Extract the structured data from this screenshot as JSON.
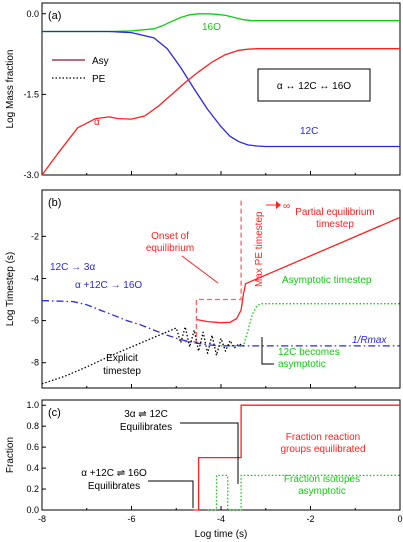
{
  "colors": {
    "red": "#ff2020",
    "blue": "#2828e0",
    "green": "#10cc10",
    "black": "#000000",
    "redDash": "#ff6060"
  },
  "chart_data": [
    {
      "type": "line",
      "panel_label": "(a)",
      "ylabel": "Log Mass fraction",
      "xlim": [
        -8,
        0
      ],
      "ylim": [
        -3.0,
        0.2
      ],
      "yticks": [
        "0.0",
        "-1.5",
        "-3.0"
      ],
      "ytick_values": [
        0.0,
        -1.5,
        -3.0
      ],
      "legend": [
        {
          "name": "Asy",
          "style": "solid",
          "color": "#8a1a2a"
        },
        {
          "name": "PE",
          "style": "dotted",
          "color": "#000000"
        }
      ],
      "series": [
        {
          "name": "16O",
          "color": "#10cc10",
          "x": [
            -8,
            -6.5,
            -6,
            -5.5,
            -5.3,
            -5.1,
            -4.9,
            -4.7,
            -4.5,
            -4.3,
            -4.1,
            -3.9,
            -3.7,
            -3.5,
            -3.3,
            -3,
            -2,
            -1,
            0
          ],
          "y": [
            -0.33,
            -0.33,
            -0.32,
            -0.28,
            -0.22,
            -0.14,
            -0.07,
            -0.02,
            0.0,
            0.0,
            -0.01,
            -0.03,
            -0.07,
            -0.11,
            -0.13,
            -0.13,
            -0.13,
            -0.13,
            -0.13
          ]
        },
        {
          "name": "12C",
          "color": "#2828e0",
          "x": [
            -8,
            -6.5,
            -6,
            -5.5,
            -5.2,
            -4.9,
            -4.6,
            -4.3,
            -4.0,
            -3.8,
            -3.6,
            -3.4,
            -3.2,
            -3.0,
            -2,
            -1,
            0
          ],
          "y": [
            -0.33,
            -0.33,
            -0.35,
            -0.45,
            -0.65,
            -1.0,
            -1.4,
            -1.78,
            -2.1,
            -2.28,
            -2.38,
            -2.44,
            -2.46,
            -2.47,
            -2.47,
            -2.47,
            -2.47
          ]
        },
        {
          "name": "alpha",
          "color": "#ff2020",
          "x": [
            -8,
            -7.6,
            -7.2,
            -6.8,
            -6.5,
            -6.3,
            -6.0,
            -5.7,
            -5.4,
            -5.1,
            -4.8,
            -4.5,
            -4.2,
            -3.9,
            -3.6,
            -3.4,
            -3.2,
            -3.0,
            -2.5,
            -2,
            -1,
            0
          ],
          "y": [
            -3.0,
            -2.55,
            -2.12,
            -1.95,
            -1.92,
            -1.95,
            -1.96,
            -1.9,
            -1.72,
            -1.5,
            -1.28,
            -1.08,
            -0.9,
            -0.76,
            -0.68,
            -0.66,
            -0.65,
            -0.65,
            -0.65,
            -0.65,
            -0.65,
            -0.65
          ]
        }
      ],
      "annotations": [
        {
          "text": "α",
          "color": "#ff2020"
        },
        {
          "text": "16O",
          "color": "#10cc10"
        },
        {
          "text": "12C",
          "color": "#2828e0"
        },
        {
          "text": "α ↔ 12C ↔ 16O",
          "color": "#000000"
        }
      ]
    },
    {
      "type": "line",
      "panel_label": "(b)",
      "ylabel": "Log Timestep (s)",
      "xlim": [
        -8,
        0
      ],
      "ylim": [
        -9.2,
        0.2
      ],
      "yticks": [
        "-2",
        "-4",
        "-6",
        "-8"
      ],
      "ytick_values": [
        -2,
        -4,
        -6,
        -8
      ],
      "series": [
        {
          "name": "Partial equilibrium timestep",
          "color": "#ff2020",
          "style": "solid",
          "x": [
            -4.55,
            -4.3,
            -4.0,
            -3.8,
            -3.65,
            -3.55,
            -3.5,
            -3.45,
            0
          ],
          "y": [
            -5.95,
            -6.05,
            -6.1,
            -6.08,
            -5.9,
            -5.5,
            -4.75,
            -4.25,
            -1.1
          ]
        },
        {
          "name": "Max PE timestep",
          "color": "#ff6060",
          "style": "dashed",
          "x": [
            -4.8,
            -4.55,
            -4.55,
            -3.55,
            -3.55,
            -3.55
          ],
          "y": [
            -7.0,
            -7.0,
            -5.0,
            -5.0,
            -4.9,
            -0.3
          ]
        },
        {
          "name": "Asymptotic timestep",
          "color": "#10cc10",
          "style": "dotted",
          "x": [
            -4.0,
            -3.5,
            -3.4,
            -3.3,
            -3.2,
            -3.1,
            -3.0,
            -2.5,
            -1,
            0
          ],
          "y": [
            -7.2,
            -7.2,
            -6.5,
            -5.7,
            -5.3,
            -5.2,
            -5.2,
            -5.2,
            -5.2,
            -5.2
          ]
        },
        {
          "name": "1/Rmax",
          "color": "#2828e0",
          "style": "dashdot",
          "x": [
            -8,
            -7.3,
            -7.0,
            -6.7,
            -6.4,
            -6.1,
            -5.8,
            -5.5,
            -5.2,
            -4.9,
            -4.6,
            -4.3,
            -4.0,
            -3.5,
            -3.0,
            -2,
            -1,
            0
          ],
          "y": [
            -5.05,
            -5.1,
            -5.25,
            -5.5,
            -5.75,
            -6.0,
            -6.2,
            -6.45,
            -6.7,
            -6.9,
            -7.05,
            -7.15,
            -7.2,
            -7.2,
            -7.2,
            -7.2,
            -7.2,
            -7.2
          ]
        },
        {
          "name": "Explicit timestep",
          "color": "#000000",
          "style": "dotted",
          "x": [
            -8,
            -7.5,
            -7,
            -6.5,
            -6,
            -5.5,
            -5.0,
            -4.9,
            -4.8,
            -4.7,
            -4.6,
            -4.5,
            -4.4,
            -4.3,
            -4.2,
            -4.1,
            -4.0,
            -3.9,
            -3.8,
            -3.7,
            -3.6,
            -3.5
          ],
          "y": [
            -9.0,
            -8.65,
            -8.2,
            -7.7,
            -7.25,
            -6.8,
            -6.35,
            -7.05,
            -6.3,
            -7.25,
            -6.45,
            -7.45,
            -6.55,
            -7.55,
            -6.7,
            -7.65,
            -6.85,
            -7.45,
            -6.95,
            -7.3,
            -7.1,
            -7.2
          ]
        }
      ],
      "annotations": [
        {
          "text": "Onset of",
          "color": "#ff2020"
        },
        {
          "text": "equilibrium",
          "color": "#ff2020"
        },
        {
          "text": "Partial equilibrium",
          "color": "#ff2020"
        },
        {
          "text": "timestep",
          "color": "#ff2020"
        },
        {
          "text": "Max PE timestep",
          "color": "#ff2020"
        },
        {
          "text": "∞",
          "color": "#ff2020"
        },
        {
          "text": "12C → 3α",
          "color": "#2828e0"
        },
        {
          "text": "α +12C → 16O",
          "color": "#2828e0"
        },
        {
          "text": "Asymptotic timestep",
          "color": "#10cc10"
        },
        {
          "text": "1/Rmax",
          "color": "#2828e0"
        },
        {
          "text": "12C becomes",
          "color": "#10cc10"
        },
        {
          "text": "asymptotic",
          "color": "#10cc10"
        },
        {
          "text": "Explicit",
          "color": "#000000"
        },
        {
          "text": "timestep",
          "color": "#000000"
        }
      ]
    },
    {
      "type": "line",
      "panel_label": "(c)",
      "ylabel": "Fraction",
      "xlabel": "Log time (s)",
      "xlim": [
        -8,
        0
      ],
      "ylim": [
        0.0,
        1.05
      ],
      "xticks": [
        "-8",
        "-6",
        "-4",
        "-2",
        "0"
      ],
      "xtick_values": [
        -8,
        -6,
        -4,
        -2,
        0
      ],
      "yticks": [
        "0.0",
        "0.2",
        "0.4",
        "0.6",
        "0.8",
        "1.0"
      ],
      "ytick_values": [
        0.0,
        0.2,
        0.4,
        0.6,
        0.8,
        1.0
      ],
      "series": [
        {
          "name": "Fraction reaction groups equilibrated",
          "color": "#ff2020",
          "style": "solid",
          "x": [
            -4.62,
            -4.5,
            -4.5,
            -3.55,
            -3.55,
            0
          ],
          "y": [
            0.0,
            0.0,
            0.5,
            0.5,
            1.0,
            1.0
          ]
        },
        {
          "name": "Fraction isotopes asymptotic",
          "color": "#10cc10",
          "style": "dotted",
          "x": [
            -4.3,
            -4.1,
            -4.1,
            -3.85,
            -3.85,
            -3.55,
            -3.55,
            0
          ],
          "y": [
            0.0,
            0.0,
            0.33,
            0.33,
            0.0,
            0.0,
            0.33,
            0.33
          ]
        }
      ],
      "annotations": [
        {
          "text": "3α ⇌ 12C",
          "color": "#000000"
        },
        {
          "text": "Equilibrates",
          "color": "#000000"
        },
        {
          "text": "α +12C ⇌ 16O",
          "color": "#000000"
        },
        {
          "text": "Equilibrates",
          "color": "#000000"
        },
        {
          "text": "Fraction reaction",
          "color": "#ff2020"
        },
        {
          "text": "groups equilibrated",
          "color": "#ff2020"
        },
        {
          "text": "Fraction isotopes",
          "color": "#10cc10"
        },
        {
          "text": "asymptotic",
          "color": "#10cc10"
        }
      ]
    }
  ]
}
